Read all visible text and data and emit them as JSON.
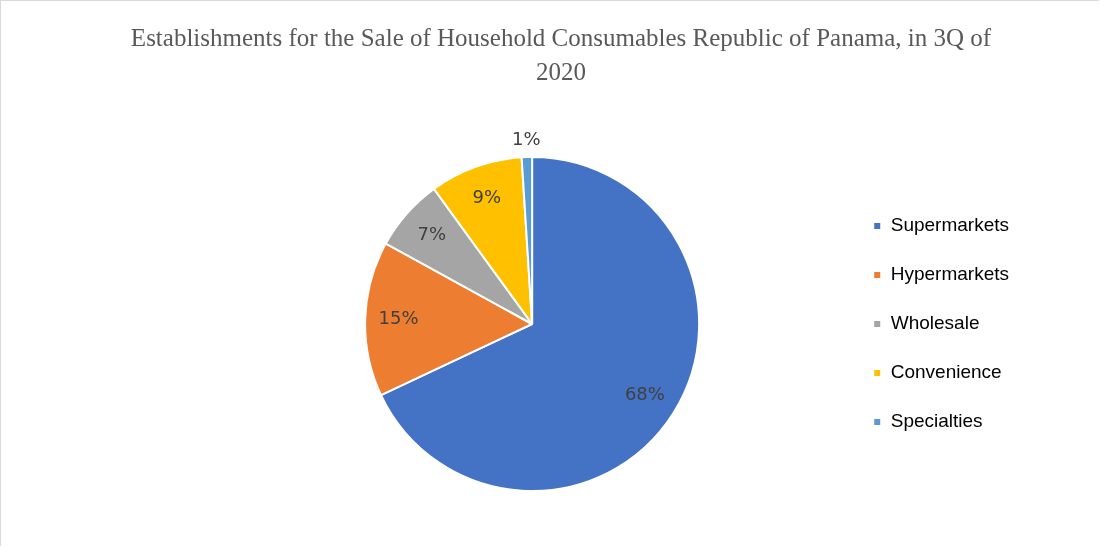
{
  "chart_data": {
    "type": "pie",
    "title": "Establishments for the Sale of Household Consumables Republic of Panama, in 3Q of 2020",
    "categories": [
      "Supermarkets",
      "Hypermarkets",
      "Wholesale",
      "Convenience",
      "Specialties"
    ],
    "values": [
      68,
      15,
      7,
      9,
      1
    ],
    "colors": [
      "#4472c4",
      "#ed7d31",
      "#a5a5a5",
      "#ffc000",
      "#5b9bd5"
    ],
    "value_labels": [
      "68%",
      "15%",
      "7%",
      "9%",
      "1%"
    ],
    "legend": "right"
  }
}
